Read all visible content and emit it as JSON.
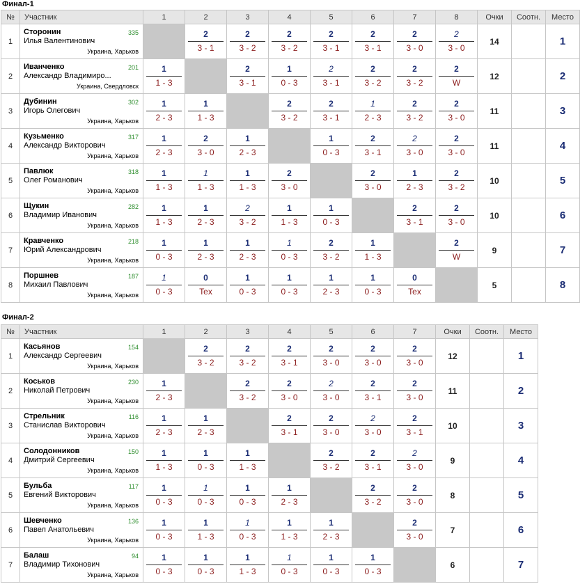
{
  "headers": {
    "no": "№",
    "participant": "Участник",
    "points": "Очки",
    "ratio": "Соотн.",
    "place": "Место"
  },
  "tables": [
    {
      "title": "Финал-1",
      "cols": [
        "1",
        "2",
        "3",
        "4",
        "5",
        "6",
        "7",
        "8"
      ],
      "players": [
        {
          "no": "1",
          "surname": "Сторонин",
          "name": "Илья Валентинович",
          "rating": "335",
          "city": "Украина, Харьков",
          "total": "14",
          "place": "1",
          "results": [
            null,
            {
              "p": "2",
              "s": "3 - 1"
            },
            {
              "p": "2",
              "s": "3 - 2"
            },
            {
              "p": "2",
              "s": "3 - 2"
            },
            {
              "p": "2",
              "s": "3 - 1"
            },
            {
              "p": "2",
              "s": "3 - 1"
            },
            {
              "p": "2",
              "s": "3 - 0"
            },
            {
              "p": "2",
              "s": "3 - 0",
              "i": true
            }
          ]
        },
        {
          "no": "2",
          "surname": "Иванченко",
          "name": "Александр Владимиро...",
          "rating": "201",
          "city": "Украина, Свердловск",
          "total": "12",
          "place": "2",
          "results": [
            {
              "p": "1",
              "s": "1 - 3"
            },
            null,
            {
              "p": "2",
              "s": "3 - 1"
            },
            {
              "p": "1",
              "s": "0 - 3"
            },
            {
              "p": "2",
              "s": "3 - 1",
              "i": true
            },
            {
              "p": "2",
              "s": "3 - 2"
            },
            {
              "p": "2",
              "s": "3 - 2"
            },
            {
              "p": "2",
              "s": "W"
            }
          ]
        },
        {
          "no": "3",
          "surname": "Дубинин",
          "name": "Игорь Олегович",
          "rating": "302",
          "city": "Украина, Харьков",
          "total": "11",
          "place": "3",
          "results": [
            {
              "p": "1",
              "s": "2 - 3"
            },
            {
              "p": "1",
              "s": "1 - 3"
            },
            null,
            {
              "p": "2",
              "s": "3 - 2"
            },
            {
              "p": "2",
              "s": "3 - 1"
            },
            {
              "p": "1",
              "s": "2 - 3",
              "i": true
            },
            {
              "p": "2",
              "s": "3 - 2"
            },
            {
              "p": "2",
              "s": "3 - 0"
            }
          ]
        },
        {
          "no": "4",
          "surname": "Кузьменко",
          "name": "Александр Викторович",
          "rating": "317",
          "city": "Украина, Харьков",
          "total": "11",
          "place": "4",
          "results": [
            {
              "p": "1",
              "s": "2 - 3"
            },
            {
              "p": "2",
              "s": "3 - 0"
            },
            {
              "p": "1",
              "s": "2 - 3"
            },
            null,
            {
              "p": "1",
              "s": "0 - 3"
            },
            {
              "p": "2",
              "s": "3 - 1"
            },
            {
              "p": "2",
              "s": "3 - 0",
              "i": true
            },
            {
              "p": "2",
              "s": "3 - 0"
            }
          ]
        },
        {
          "no": "5",
          "surname": "Павлюк",
          "name": "Олег Романович",
          "rating": "318",
          "city": "Украина, Харьков",
          "total": "10",
          "place": "5",
          "results": [
            {
              "p": "1",
              "s": "1 - 3"
            },
            {
              "p": "1",
              "s": "1 - 3",
              "i": true
            },
            {
              "p": "1",
              "s": "1 - 3"
            },
            {
              "p": "2",
              "s": "3 - 0"
            },
            null,
            {
              "p": "2",
              "s": "3 - 0"
            },
            {
              "p": "1",
              "s": "2 - 3"
            },
            {
              "p": "2",
              "s": "3 - 2"
            }
          ]
        },
        {
          "no": "6",
          "surname": "Щукин",
          "name": "Владимир Иванович",
          "rating": "282",
          "city": "Украина, Харьков",
          "total": "10",
          "place": "6",
          "results": [
            {
              "p": "1",
              "s": "1 - 3"
            },
            {
              "p": "1",
              "s": "2 - 3"
            },
            {
              "p": "2",
              "s": "3 - 2",
              "i": true
            },
            {
              "p": "1",
              "s": "1 - 3"
            },
            {
              "p": "1",
              "s": "0 - 3"
            },
            null,
            {
              "p": "2",
              "s": "3 - 1"
            },
            {
              "p": "2",
              "s": "3 - 0"
            }
          ]
        },
        {
          "no": "7",
          "surname": "Кравченко",
          "name": "Юрий Александрович",
          "rating": "218",
          "city": "Украина, Харьков",
          "total": "9",
          "place": "7",
          "results": [
            {
              "p": "1",
              "s": "0 - 3"
            },
            {
              "p": "1",
              "s": "2 - 3"
            },
            {
              "p": "1",
              "s": "2 - 3"
            },
            {
              "p": "1",
              "s": "0 - 3",
              "i": true
            },
            {
              "p": "2",
              "s": "3 - 2"
            },
            {
              "p": "1",
              "s": "1 - 3"
            },
            null,
            {
              "p": "2",
              "s": "W"
            }
          ]
        },
        {
          "no": "8",
          "surname": "Поршнев",
          "name": "Михаил Павлович",
          "rating": "187",
          "city": "Украина, Харьков",
          "total": "5",
          "place": "8",
          "results": [
            {
              "p": "1",
              "s": "0 - 3",
              "i": true
            },
            {
              "p": "0",
              "s": "Tex"
            },
            {
              "p": "1",
              "s": "0 - 3"
            },
            {
              "p": "1",
              "s": "0 - 3"
            },
            {
              "p": "1",
              "s": "2 - 3"
            },
            {
              "p": "1",
              "s": "0 - 3"
            },
            {
              "p": "0",
              "s": "Tex"
            },
            null
          ]
        }
      ]
    },
    {
      "title": "Финал-2",
      "cols": [
        "1",
        "2",
        "3",
        "4",
        "5",
        "6",
        "7"
      ],
      "players": [
        {
          "no": "1",
          "surname": "Касьянов",
          "name": "Александр Сергеевич",
          "rating": "154",
          "city": "Украина, Харьков",
          "total": "12",
          "place": "1",
          "results": [
            null,
            {
              "p": "2",
              "s": "3 - 2"
            },
            {
              "p": "2",
              "s": "3 - 2"
            },
            {
              "p": "2",
              "s": "3 - 1"
            },
            {
              "p": "2",
              "s": "3 - 0"
            },
            {
              "p": "2",
              "s": "3 - 0"
            },
            {
              "p": "2",
              "s": "3 - 0"
            }
          ]
        },
        {
          "no": "2",
          "surname": "Коськов",
          "name": "Николай Петрович",
          "rating": "230",
          "city": "Украина, Харьков",
          "total": "11",
          "place": "2",
          "results": [
            {
              "p": "1",
              "s": "2 - 3"
            },
            null,
            {
              "p": "2",
              "s": "3 - 2"
            },
            {
              "p": "2",
              "s": "3 - 0"
            },
            {
              "p": "2",
              "s": "3 - 0",
              "i": true
            },
            {
              "p": "2",
              "s": "3 - 1"
            },
            {
              "p": "2",
              "s": "3 - 0"
            }
          ]
        },
        {
          "no": "3",
          "surname": "Стрельник",
          "name": "Станислав Викторович",
          "rating": "116",
          "city": "Украина, Харьков",
          "total": "10",
          "place": "3",
          "results": [
            {
              "p": "1",
              "s": "2 - 3"
            },
            {
              "p": "1",
              "s": "2 - 3"
            },
            null,
            {
              "p": "2",
              "s": "3 - 1"
            },
            {
              "p": "2",
              "s": "3 - 0"
            },
            {
              "p": "2",
              "s": "3 - 0",
              "i": true
            },
            {
              "p": "2",
              "s": "3 - 1"
            }
          ]
        },
        {
          "no": "4",
          "surname": "Солодонников",
          "name": "Дмитрий Сергеевич",
          "rating": "150",
          "city": "Украина, Харьков",
          "total": "9",
          "place": "4",
          "results": [
            {
              "p": "1",
              "s": "1 - 3"
            },
            {
              "p": "1",
              "s": "0 - 3"
            },
            {
              "p": "1",
              "s": "1 - 3"
            },
            null,
            {
              "p": "2",
              "s": "3 - 2"
            },
            {
              "p": "2",
              "s": "3 - 1"
            },
            {
              "p": "2",
              "s": "3 - 0",
              "i": true
            }
          ]
        },
        {
          "no": "5",
          "surname": "Бульба",
          "name": "Евгений Викторович",
          "rating": "117",
          "city": "Украина, Харьков",
          "total": "8",
          "place": "5",
          "results": [
            {
              "p": "1",
              "s": "0 - 3"
            },
            {
              "p": "1",
              "s": "0 - 3",
              "i": true
            },
            {
              "p": "1",
              "s": "0 - 3"
            },
            {
              "p": "1",
              "s": "2 - 3"
            },
            null,
            {
              "p": "2",
              "s": "3 - 2"
            },
            {
              "p": "2",
              "s": "3 - 0"
            }
          ]
        },
        {
          "no": "6",
          "surname": "Шевченко",
          "name": "Павел Анатольевич",
          "rating": "136",
          "city": "Украина, Харьков",
          "total": "7",
          "place": "6",
          "results": [
            {
              "p": "1",
              "s": "0 - 3"
            },
            {
              "p": "1",
              "s": "1 - 3"
            },
            {
              "p": "1",
              "s": "0 - 3",
              "i": true
            },
            {
              "p": "1",
              "s": "1 - 3"
            },
            {
              "p": "1",
              "s": "2 - 3"
            },
            null,
            {
              "p": "2",
              "s": "3 - 0"
            }
          ]
        },
        {
          "no": "7",
          "surname": "Балаш",
          "name": "Владимир Тихонович",
          "rating": "94",
          "city": "Украина, Харьков",
          "total": "6",
          "place": "7",
          "results": [
            {
              "p": "1",
              "s": "0 - 3"
            },
            {
              "p": "1",
              "s": "0 - 3"
            },
            {
              "p": "1",
              "s": "1 - 3"
            },
            {
              "p": "1",
              "s": "0 - 3",
              "i": true
            },
            {
              "p": "1",
              "s": "0 - 3"
            },
            {
              "p": "1",
              "s": "0 - 3"
            },
            null
          ]
        }
      ]
    }
  ]
}
